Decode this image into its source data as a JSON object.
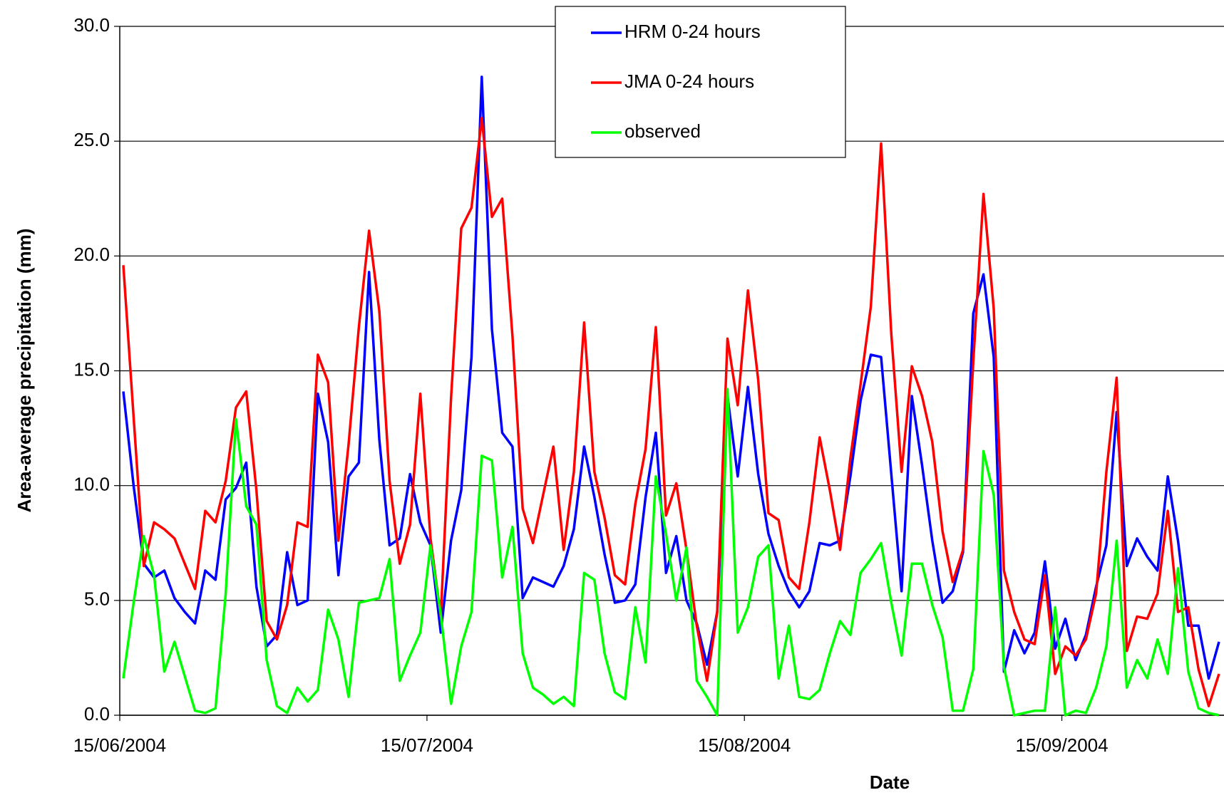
{
  "chart_data": {
    "type": "line",
    "y_label": "Area-average precipitation (mm)",
    "x_label": "Date",
    "legend": "top-center",
    "grid": true,
    "ylim": [
      0,
      30
    ],
    "yticks": [
      {
        "value": 0,
        "label": "0.0"
      },
      {
        "value": 5,
        "label": "5.0"
      },
      {
        "value": 10,
        "label": "10.0"
      },
      {
        "value": 15,
        "label": "15.0"
      },
      {
        "value": 20,
        "label": "20.0"
      },
      {
        "value": 25,
        "label": "25.0"
      },
      {
        "value": 30,
        "label": "30.0"
      }
    ],
    "xlim": [
      "15/06/2004",
      "30/09/2004"
    ],
    "xticks": [
      "15/06/2004",
      "15/07/2004",
      "15/08/2004",
      "15/09/2004"
    ],
    "x": [
      "15/06/2004",
      "16/06/2004",
      "17/06/2004",
      "18/06/2004",
      "19/06/2004",
      "20/06/2004",
      "21/06/2004",
      "22/06/2004",
      "23/06/2004",
      "24/06/2004",
      "25/06/2004",
      "26/06/2004",
      "27/06/2004",
      "28/06/2004",
      "29/06/2004",
      "30/06/2004",
      "01/07/2004",
      "02/07/2004",
      "03/07/2004",
      "04/07/2004",
      "05/07/2004",
      "06/07/2004",
      "07/07/2004",
      "08/07/2004",
      "09/07/2004",
      "10/07/2004",
      "11/07/2004",
      "12/07/2004",
      "13/07/2004",
      "14/07/2004",
      "15/07/2004",
      "16/07/2004",
      "17/07/2004",
      "18/07/2004",
      "19/07/2004",
      "20/07/2004",
      "21/07/2004",
      "22/07/2004",
      "23/07/2004",
      "24/07/2004",
      "25/07/2004",
      "26/07/2004",
      "27/07/2004",
      "28/07/2004",
      "29/07/2004",
      "30/07/2004",
      "31/07/2004",
      "01/08/2004",
      "02/08/2004",
      "03/08/2004",
      "04/08/2004",
      "05/08/2004",
      "06/08/2004",
      "07/08/2004",
      "08/08/2004",
      "09/08/2004",
      "10/08/2004",
      "11/08/2004",
      "12/08/2004",
      "13/08/2004",
      "14/08/2004",
      "15/08/2004",
      "16/08/2004",
      "17/08/2004",
      "18/08/2004",
      "19/08/2004",
      "20/08/2004",
      "21/08/2004",
      "22/08/2004",
      "23/08/2004",
      "24/08/2004",
      "25/08/2004",
      "26/08/2004",
      "27/08/2004",
      "28/08/2004",
      "29/08/2004",
      "30/08/2004",
      "31/08/2004",
      "01/09/2004",
      "02/09/2004",
      "03/09/2004",
      "04/09/2004",
      "05/09/2004",
      "06/09/2004",
      "07/09/2004",
      "08/09/2004",
      "09/09/2004",
      "10/09/2004",
      "11/09/2004",
      "12/09/2004",
      "13/09/2004",
      "14/09/2004",
      "15/09/2004",
      "16/09/2004",
      "17/09/2004",
      "18/09/2004",
      "19/09/2004",
      "20/09/2004",
      "21/09/2004",
      "22/09/2004",
      "23/09/2004",
      "24/09/2004",
      "25/09/2004",
      "26/09/2004",
      "27/09/2004",
      "28/09/2004",
      "29/09/2004",
      "30/09/2004"
    ],
    "series": [
      {
        "name": "HRM 0-24 hours",
        "color": "#0000ff",
        "values": [
          14.1,
          10,
          6.6,
          6.0,
          6.3,
          5.1,
          4.5,
          4.0,
          6.3,
          5.9,
          9.4,
          9.9,
          11.0,
          5.6,
          3.0,
          3.5,
          7.1,
          4.8,
          5.0,
          14.0,
          11.9,
          6.1,
          10.4,
          11.0,
          19.3,
          12.0,
          7.4,
          7.7,
          10.5,
          8.4,
          7.4,
          3.6,
          7.6,
          9.8,
          15.6,
          27.8,
          16.8,
          12.3,
          11.7,
          5.1,
          6.0,
          5.8,
          5.6,
          6.5,
          8.1,
          11.7,
          9.5,
          7.0,
          4.9,
          5.0,
          5.7,
          9.5,
          12.3,
          6.2,
          7.8,
          5.0,
          4.0,
          2.2,
          4.5,
          13.9,
          10.4,
          14.3,
          10.5,
          7.9,
          6.5,
          5.4,
          4.7,
          5.4,
          7.5,
          7.4,
          7.6,
          10.4,
          13.7,
          15.7,
          15.6,
          10.5,
          5.4,
          13.9,
          10.9,
          7.6,
          4.9,
          5.4,
          7.1,
          17.5,
          19.2,
          15.6,
          1.9,
          3.7,
          2.7,
          3.6,
          6.7,
          2.9,
          4.2,
          2.4,
          3.5,
          5.6,
          7.4,
          13.2,
          6.5,
          7.7,
          6.9,
          6.3,
          10.4,
          7.6,
          3.9,
          3.9,
          1.6,
          3.2
        ]
      },
      {
        "name": "JMA 0-24 hours",
        "color": "#ff0000",
        "values": [
          19.6,
          13,
          6.5,
          8.4,
          8.1,
          7.7,
          6.6,
          5.5,
          8.9,
          8.4,
          10.2,
          13.4,
          14.1,
          9.8,
          4.1,
          3.3,
          4.8,
          8.4,
          8.2,
          15.7,
          14.5,
          7.6,
          11.8,
          16.9,
          21.1,
          17.6,
          10.2,
          6.6,
          8.3,
          14.0,
          7.7,
          4.3,
          13.8,
          21.2,
          22.1,
          26.0,
          21.7,
          22.5,
          16.5,
          9.0,
          7.5,
          9.6,
          11.7,
          7.2,
          10.6,
          17.1,
          10.6,
          8.6,
          6.1,
          5.7,
          9.2,
          11.6,
          16.9,
          8.7,
          10.1,
          7.2,
          3.9,
          1.5,
          4.5,
          16.4,
          13.5,
          18.5,
          14.6,
          8.8,
          8.5,
          6.0,
          5.5,
          8.4,
          12.1,
          9.8,
          7.2,
          11.2,
          14.4,
          17.8,
          24.9,
          16.6,
          10.6,
          15.2,
          13.9,
          11.9,
          8.0,
          5.8,
          7.2,
          15.4,
          22.7,
          17.7,
          6.3,
          4.5,
          3.3,
          3.1,
          6.1,
          1.8,
          3.0,
          2.6,
          3.3,
          5.3,
          10.6,
          14.7,
          2.8,
          4.3,
          4.2,
          5.3,
          8.9,
          4.5,
          4.7,
          2.0,
          0.4,
          1.8
        ]
      },
      {
        "name": "observed",
        "color": "#00ff00",
        "values": [
          1.6,
          4.9,
          7.8,
          6.1,
          1.9,
          3.2,
          1.7,
          0.2,
          0.1,
          0.3,
          5.3,
          12.9,
          9.1,
          8.3,
          2.4,
          0.4,
          0.1,
          1.2,
          0.6,
          1.1,
          4.6,
          3.3,
          0.8,
          4.9,
          5.0,
          5.1,
          6.8,
          1.5,
          2.6,
          3.6,
          7.4,
          4.4,
          0.5,
          3.0,
          4.5,
          11.3,
          11.1,
          6.0,
          8.2,
          2.7,
          1.2,
          0.9,
          0.5,
          0.8,
          0.4,
          6.2,
          5.9,
          2.7,
          1.0,
          0.7,
          4.7,
          2.3,
          10.4,
          7.9,
          5.0,
          7.3,
          1.5,
          0.8,
          0.0,
          14.2,
          3.6,
          4.7,
          6.9,
          7.4,
          1.6,
          3.9,
          0.8,
          0.7,
          1.1,
          2.7,
          4.1,
          3.5,
          6.2,
          6.8,
          7.5,
          4.9,
          2.6,
          6.6,
          6.6,
          4.8,
          3.4,
          0.2,
          0.2,
          2.0,
          11.5,
          9.6,
          2.1,
          0.0,
          0.1,
          0.2,
          0.2,
          4.7,
          0.0,
          0.2,
          0.1,
          1.2,
          3.0,
          7.6,
          1.2,
          2.4,
          1.6,
          3.3,
          1.8,
          6.4,
          1.9,
          0.3,
          0.1,
          0.0
        ]
      }
    ]
  }
}
